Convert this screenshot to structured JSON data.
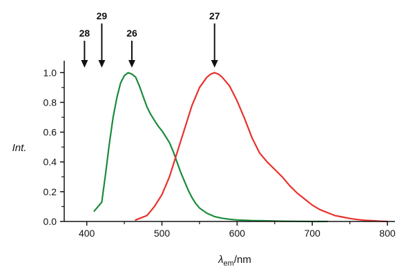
{
  "chart_data": {
    "type": "line",
    "title": "",
    "xlabel": {
      "symbol": "λ",
      "subscript": "em",
      "unit": "/nm"
    },
    "ylabel": "Int.",
    "xlim": [
      370,
      810
    ],
    "ylim": [
      0,
      1.08
    ],
    "x_ticks": [
      400,
      500,
      600,
      700,
      800
    ],
    "y_ticks": [
      0.0,
      0.2,
      0.4,
      0.6,
      0.8,
      1.0
    ],
    "y_tick_labels": [
      "0.0",
      "0.2",
      "0.4",
      "0.6",
      "0.8",
      "1.0"
    ],
    "grid": false,
    "legend": "none",
    "series": [
      {
        "color": "#1a8a3a",
        "x": [
          410,
          415,
          420,
          425,
          430,
          435,
          440,
          445,
          450,
          455,
          460,
          465,
          470,
          475,
          480,
          485,
          490,
          495,
          500,
          505,
          510,
          515,
          520,
          525,
          530,
          535,
          540,
          545,
          550,
          560,
          570,
          580,
          590,
          600,
          620,
          640,
          660,
          680,
          700,
          720
        ],
        "y": [
          0.07,
          0.1,
          0.13,
          0.32,
          0.52,
          0.7,
          0.83,
          0.93,
          0.98,
          1.0,
          0.99,
          0.97,
          0.91,
          0.84,
          0.77,
          0.72,
          0.68,
          0.64,
          0.61,
          0.57,
          0.53,
          0.47,
          0.4,
          0.33,
          0.27,
          0.21,
          0.16,
          0.12,
          0.09,
          0.055,
          0.033,
          0.022,
          0.015,
          0.01,
          0.006,
          0.004,
          0.002,
          0.001,
          0.0,
          0.0
        ]
      },
      {
        "color": "#e8302a",
        "x": [
          465,
          470,
          480,
          490,
          500,
          510,
          520,
          530,
          540,
          550,
          560,
          565,
          570,
          575,
          580,
          590,
          600,
          610,
          620,
          630,
          640,
          650,
          660,
          670,
          680,
          690,
          700,
          710,
          720,
          730,
          740,
          750,
          760,
          770,
          780,
          790,
          800
        ],
        "y": [
          0.01,
          0.02,
          0.04,
          0.1,
          0.18,
          0.3,
          0.46,
          0.62,
          0.78,
          0.9,
          0.97,
          0.99,
          1.0,
          0.99,
          0.97,
          0.91,
          0.81,
          0.69,
          0.56,
          0.46,
          0.4,
          0.35,
          0.3,
          0.24,
          0.19,
          0.15,
          0.11,
          0.08,
          0.06,
          0.04,
          0.03,
          0.02,
          0.013,
          0.008,
          0.005,
          0.002,
          0.0
        ]
      }
    ],
    "annotations": [
      {
        "label": "28",
        "x": 397,
        "tier": 2
      },
      {
        "label": "29",
        "x": 420,
        "tier": 1
      },
      {
        "label": "26",
        "x": 460,
        "tier": 2
      },
      {
        "label": "27",
        "x": 570,
        "tier": 1
      }
    ]
  }
}
